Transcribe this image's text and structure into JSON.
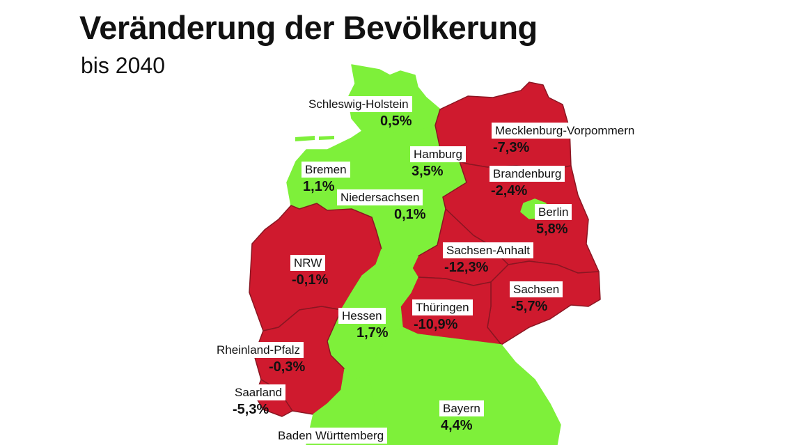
{
  "header": {
    "title": "Veränderung der Bevölkerung",
    "subtitle": "bis 2040"
  },
  "colors": {
    "growth": "#7ef03a",
    "decline": "#cf1a2e",
    "border": "#8a1622"
  },
  "states": [
    {
      "id": "sh",
      "name": "Schleswig-Holstein",
      "value": "0,5%",
      "trend": "growth"
    },
    {
      "id": "hh",
      "name": "Hamburg",
      "value": "3,5%",
      "trend": "growth"
    },
    {
      "id": "hb",
      "name": "Bremen",
      "value": "1,1%",
      "trend": "growth"
    },
    {
      "id": "ni",
      "name": "Niedersachsen",
      "value": "0,1%",
      "trend": "growth"
    },
    {
      "id": "mv",
      "name": "Mecklenburg-Vorpommern",
      "value": "-7,3%",
      "trend": "decline"
    },
    {
      "id": "bb",
      "name": "Brandenburg",
      "value": "-2,4%",
      "trend": "decline"
    },
    {
      "id": "be",
      "name": "Berlin",
      "value": "5,8%",
      "trend": "growth"
    },
    {
      "id": "st",
      "name": "Sachsen-Anhalt",
      "value": "-12,3%",
      "trend": "decline"
    },
    {
      "id": "sn",
      "name": "Sachsen",
      "value": "-5,7%",
      "trend": "decline"
    },
    {
      "id": "nw",
      "name": "NRW",
      "value": "-0,1%",
      "trend": "decline"
    },
    {
      "id": "he",
      "name": "Hessen",
      "value": "1,7%",
      "trend": "growth"
    },
    {
      "id": "th",
      "name": "Thüringen",
      "value": "-10,9%",
      "trend": "decline"
    },
    {
      "id": "rp",
      "name": "Rheinland-Pfalz",
      "value": "-0,3%",
      "trend": "decline"
    },
    {
      "id": "sl",
      "name": "Saarland",
      "value": "-5,3%",
      "trend": "decline"
    },
    {
      "id": "by",
      "name": "Bayern",
      "value": "4,4%",
      "trend": "growth"
    },
    {
      "id": "bw",
      "name": "Baden Württemberg",
      "value": "",
      "trend": "growth"
    }
  ]
}
